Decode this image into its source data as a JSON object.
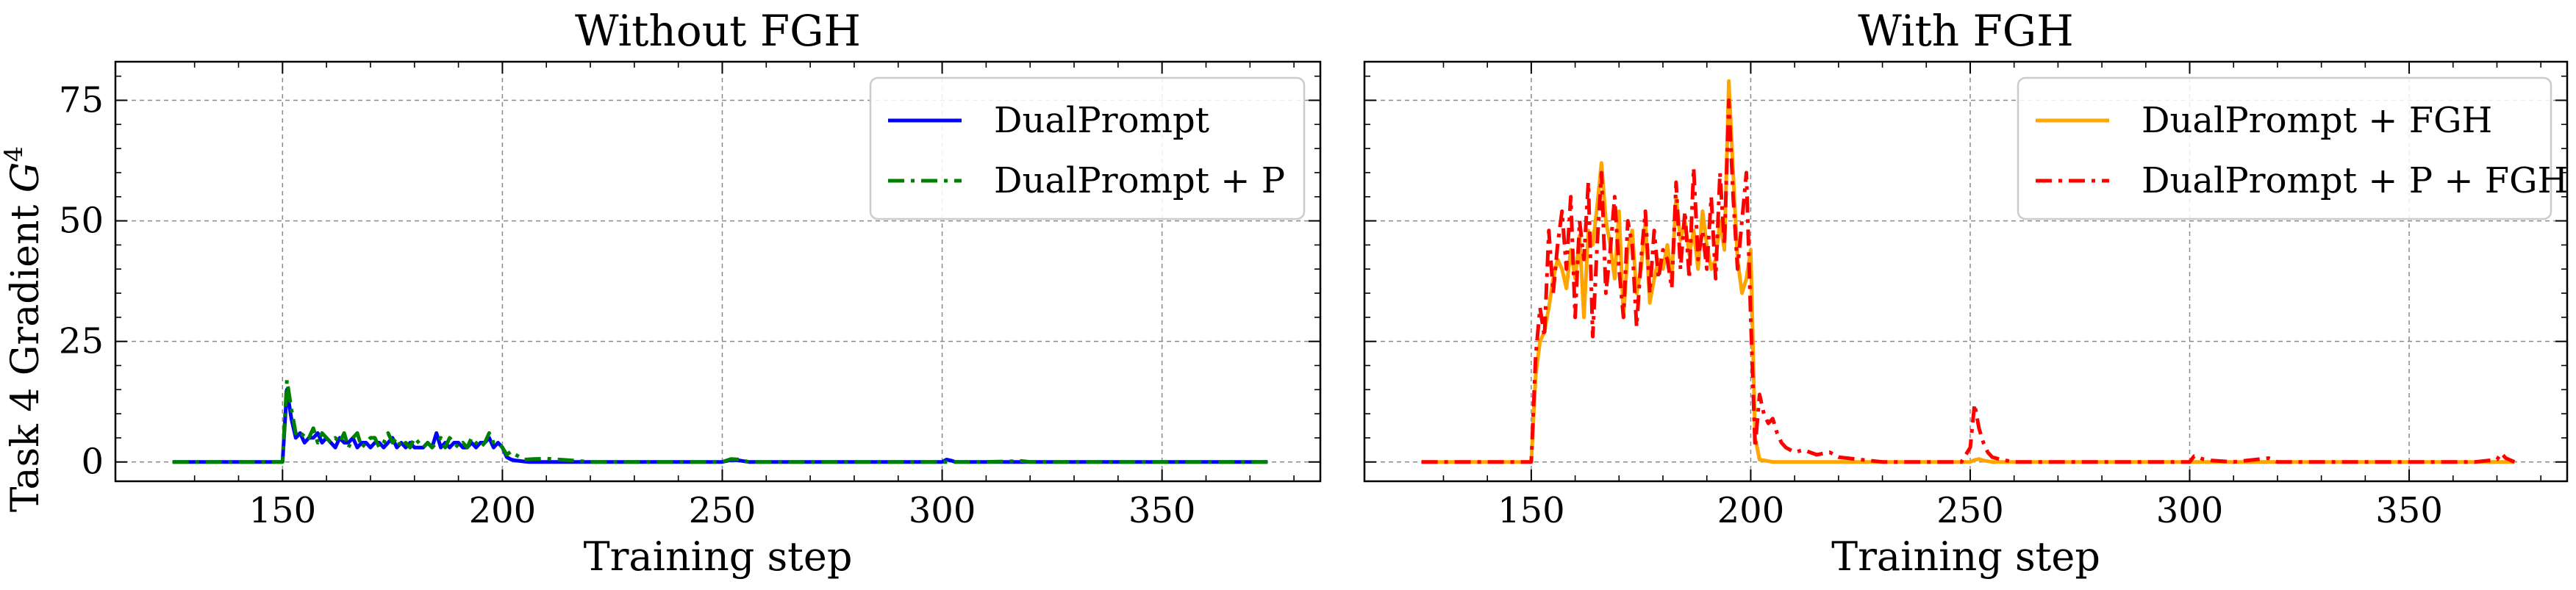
{
  "figure": {
    "ylabel_main": "Task 4 Gradient ",
    "ylabel_symbol": "G",
    "ylabel_superscript": "4"
  },
  "chart_data": [
    {
      "type": "line",
      "title": "Without FGH",
      "xlabel": "Training step",
      "ylabel": "Task 4 Gradient G^4",
      "xlim": [
        112,
        386
      ],
      "ylim": [
        -4,
        83
      ],
      "xticks": [
        150,
        200,
        250,
        300,
        350
      ],
      "yticks": [
        0,
        25,
        50,
        75
      ],
      "grid": true,
      "legend_position": "upper right",
      "series": [
        {
          "name": "DualPrompt",
          "color": "#0000ff",
          "dash": "solid",
          "x": [
            125,
            140,
            149,
            150,
            151,
            152,
            153,
            154,
            155,
            156,
            157,
            158,
            159,
            160,
            161,
            162,
            163,
            164,
            165,
            166,
            167,
            168,
            169,
            170,
            171,
            172,
            173,
            174,
            175,
            176,
            177,
            178,
            179,
            180,
            181,
            182,
            183,
            184,
            185,
            186,
            187,
            188,
            189,
            190,
            191,
            192,
            193,
            194,
            195,
            196,
            197,
            198,
            199,
            200,
            201,
            202,
            203,
            204,
            205,
            206,
            210,
            215,
            220,
            230,
            240,
            250,
            252,
            254,
            256,
            260,
            270,
            280,
            290,
            300,
            301,
            302,
            303,
            305,
            310,
            320,
            330,
            340,
            350,
            360,
            370,
            374
          ],
          "y": [
            0,
            0,
            0,
            0,
            15,
            9,
            5,
            6,
            4,
            5,
            5,
            6,
            4,
            5,
            4,
            3,
            5,
            4,
            4,
            5,
            3,
            4,
            4,
            3,
            4,
            4,
            3,
            4,
            5,
            3,
            4,
            3,
            4,
            3,
            3,
            3,
            4,
            3,
            6,
            3,
            4,
            3,
            4,
            4,
            3,
            3,
            4,
            3,
            4,
            4,
            5,
            3,
            4,
            3,
            1,
            0.5,
            0.3,
            0.2,
            0.1,
            0,
            0,
            0,
            0,
            0,
            0,
            0,
            0.4,
            0.3,
            0,
            0,
            0,
            0,
            0,
            0,
            0.5,
            0.3,
            0,
            0,
            0,
            0,
            0,
            0,
            0,
            0,
            0,
            0
          ]
        },
        {
          "name": "DualPrompt + P",
          "color": "#008000",
          "dash": "dashdot",
          "x": [
            125,
            140,
            149,
            150,
            151,
            152,
            153,
            154,
            155,
            156,
            157,
            158,
            159,
            160,
            161,
            162,
            163,
            164,
            165,
            166,
            167,
            168,
            169,
            170,
            171,
            172,
            173,
            174,
            175,
            176,
            177,
            178,
            179,
            180,
            181,
            182,
            183,
            184,
            185,
            186,
            187,
            188,
            189,
            190,
            191,
            192,
            193,
            194,
            195,
            196,
            197,
            198,
            199,
            200,
            201,
            202,
            203,
            204,
            205,
            207,
            210,
            213,
            216,
            220,
            230,
            240,
            250,
            252,
            254,
            256,
            260,
            270,
            280,
            290,
            300,
            310,
            318,
            320,
            330,
            340,
            350,
            360,
            370,
            374
          ],
          "y": [
            0,
            0,
            0,
            0,
            17,
            11,
            6,
            5,
            6,
            5,
            7,
            4,
            6,
            5,
            4,
            5,
            4,
            6,
            3,
            5,
            6,
            3,
            4,
            5,
            5,
            3,
            4,
            6,
            4,
            5,
            3,
            4,
            3,
            5,
            4,
            3,
            4,
            3,
            4,
            5,
            3,
            5,
            4,
            3,
            4,
            3,
            5,
            4,
            3,
            4,
            6,
            4,
            4,
            3,
            1.5,
            2.2,
            1.5,
            1,
            0.5,
            0.6,
            0.7,
            0.5,
            0.3,
            0,
            0,
            0,
            0,
            0.6,
            0.5,
            0,
            0,
            0,
            0,
            0,
            0,
            0,
            0.2,
            0,
            0,
            0,
            0,
            0,
            0,
            0
          ]
        }
      ]
    },
    {
      "type": "line",
      "title": "With FGH",
      "xlabel": "Training step",
      "ylabel": "",
      "xlim": [
        112,
        386
      ],
      "ylim": [
        -4,
        83
      ],
      "xticks": [
        150,
        200,
        250,
        300,
        350
      ],
      "yticks": [
        0,
        25,
        50,
        75
      ],
      "grid": true,
      "legend_position": "upper right",
      "series": [
        {
          "name": "DualPrompt + FGH",
          "color": "#ffa500",
          "dash": "solid",
          "x": [
            125,
            140,
            149,
            150,
            151,
            152,
            153,
            154,
            155,
            156,
            157,
            158,
            159,
            160,
            161,
            162,
            163,
            164,
            165,
            166,
            167,
            168,
            169,
            170,
            171,
            172,
            173,
            174,
            175,
            176,
            177,
            178,
            179,
            180,
            181,
            182,
            183,
            184,
            185,
            186,
            187,
            188,
            189,
            190,
            191,
            192,
            193,
            194,
            195,
            196,
            197,
            198,
            199,
            200,
            201,
            202,
            205,
            210,
            220,
            230,
            240,
            250,
            251,
            252,
            253,
            255,
            260,
            270,
            280,
            290,
            300,
            310,
            320,
            330,
            340,
            350,
            360,
            370,
            374
          ],
          "y": [
            0,
            0,
            0,
            0,
            18,
            25,
            27,
            32,
            38,
            42,
            40,
            36,
            44,
            38,
            47,
            30,
            48,
            45,
            53,
            62,
            50,
            45,
            38,
            52,
            30,
            44,
            48,
            35,
            40,
            50,
            33,
            38,
            42,
            40,
            45,
            38,
            55,
            46,
            50,
            43,
            48,
            40,
            52,
            45,
            40,
            42,
            50,
            44,
            79,
            60,
            42,
            35,
            38,
            44,
            5,
            0.5,
            0,
            0,
            0,
            0,
            0,
            0,
            0.4,
            0.6,
            0.3,
            0,
            0,
            0,
            0,
            0,
            0,
            0,
            0,
            0,
            0,
            0,
            0,
            0,
            0
          ]
        },
        {
          "name": "DualPrompt + P + FGH",
          "color": "#ff0000",
          "dash": "dashdot",
          "x": [
            125,
            140,
            149,
            150,
            151,
            152,
            153,
            154,
            155,
            156,
            157,
            158,
            159,
            160,
            161,
            162,
            163,
            164,
            165,
            166,
            167,
            168,
            169,
            170,
            171,
            172,
            173,
            174,
            175,
            176,
            177,
            178,
            179,
            180,
            181,
            182,
            183,
            184,
            185,
            186,
            187,
            188,
            189,
            190,
            191,
            192,
            193,
            194,
            195,
            196,
            197,
            198,
            199,
            200,
            201,
            202,
            203,
            204,
            205,
            206,
            207,
            208,
            210,
            212,
            215,
            218,
            220,
            225,
            230,
            240,
            248,
            250,
            251,
            252,
            253,
            254,
            255,
            257,
            260,
            270,
            280,
            290,
            300,
            301,
            302,
            303,
            305,
            310,
            318,
            320,
            330,
            340,
            350,
            365,
            370,
            371,
            372,
            374
          ],
          "y": [
            0,
            0,
            0,
            0,
            22,
            32,
            26,
            48,
            35,
            45,
            52,
            40,
            55,
            30,
            50,
            42,
            58,
            26,
            45,
            60,
            35,
            44,
            55,
            40,
            30,
            50,
            45,
            28,
            42,
            52,
            35,
            48,
            38,
            44,
            42,
            36,
            58,
            40,
            52,
            38,
            61,
            42,
            48,
            40,
            55,
            38,
            60,
            45,
            75,
            55,
            40,
            50,
            60,
            30,
            3,
            14,
            10,
            8,
            9,
            6,
            4,
            3,
            2,
            2.5,
            1.5,
            2,
            1,
            0.5,
            0,
            0,
            0,
            3,
            12,
            7,
            4,
            2,
            1,
            0.5,
            0,
            0,
            0,
            0,
            0,
            1.2,
            1,
            0.6,
            0.3,
            0,
            0.8,
            0,
            0,
            0,
            0,
            0,
            0.5,
            1.8,
            0.8,
            0
          ]
        }
      ]
    }
  ]
}
